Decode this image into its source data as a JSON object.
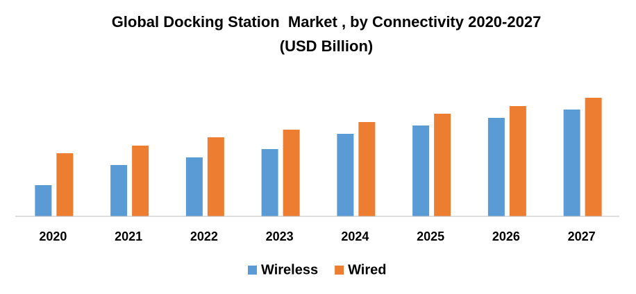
{
  "chart_data": {
    "type": "bar",
    "title": "Global Docking Station  Market , by Connectivity 2020-2027",
    "subtitle": "(USD Billion)",
    "categories": [
      "2020",
      "2021",
      "2022",
      "2023",
      "2024",
      "2025",
      "2026",
      "2027"
    ],
    "series": [
      {
        "name": "Wireless",
        "color": "#5b9bd5",
        "values": [
          4.5,
          7.4,
          8.5,
          9.7,
          11.9,
          13.1,
          14.2,
          15.4
        ]
      },
      {
        "name": "Wired",
        "color": "#ed7d31",
        "values": [
          9.1,
          10.2,
          11.4,
          12.5,
          13.6,
          14.8,
          15.9,
          17.1
        ]
      }
    ],
    "ylim": [
      0,
      20
    ],
    "legend": "bottom"
  }
}
